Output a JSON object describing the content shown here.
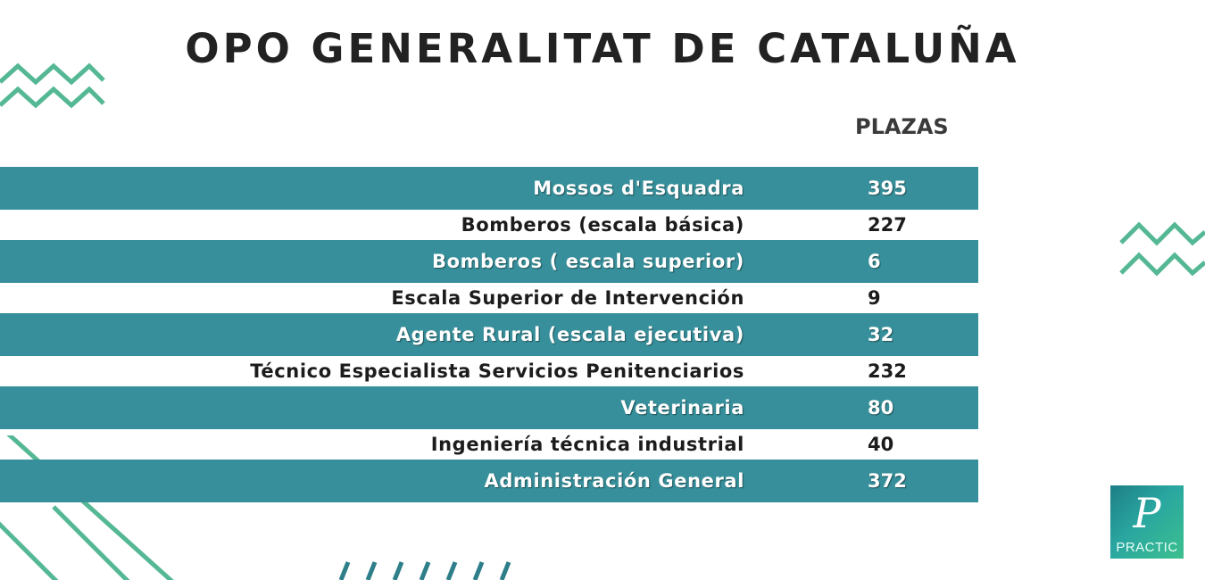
{
  "title": "OPO GENERALITAT DE CATALUÑA",
  "column_header": "PLAZAS",
  "colors": {
    "band": "#368f9a",
    "accent_green": "#55b894",
    "teal_dark": "#2e7f8a",
    "title": "#222222"
  },
  "rows": [
    {
      "label": "Mossos d'Esquadra",
      "value": "395",
      "banded": true
    },
    {
      "label": "Bomberos (escala básica)",
      "value": "227",
      "banded": false
    },
    {
      "label": "Bomberos ( escala superior)",
      "value": "6",
      "banded": true
    },
    {
      "label": "Escala Superior de Intervención",
      "value": "9",
      "banded": false
    },
    {
      "label": "Agente Rural (escala ejecutiva)",
      "value": "32",
      "banded": true
    },
    {
      "label": "Técnico Especialista Servicios Penitenciarios",
      "value": "232",
      "banded": false
    },
    {
      "label": "Veterinaria",
      "value": "80",
      "banded": true
    },
    {
      "label": "Ingeniería técnica industrial",
      "value": "40",
      "banded": false
    },
    {
      "label": "Administración General",
      "value": "372",
      "banded": true
    }
  ],
  "logo": {
    "letter": "P",
    "word": "PRACTIC"
  },
  "icons": [
    "zigzag-decoration",
    "diagonal-lines-decoration",
    "slash-marks-decoration"
  ]
}
